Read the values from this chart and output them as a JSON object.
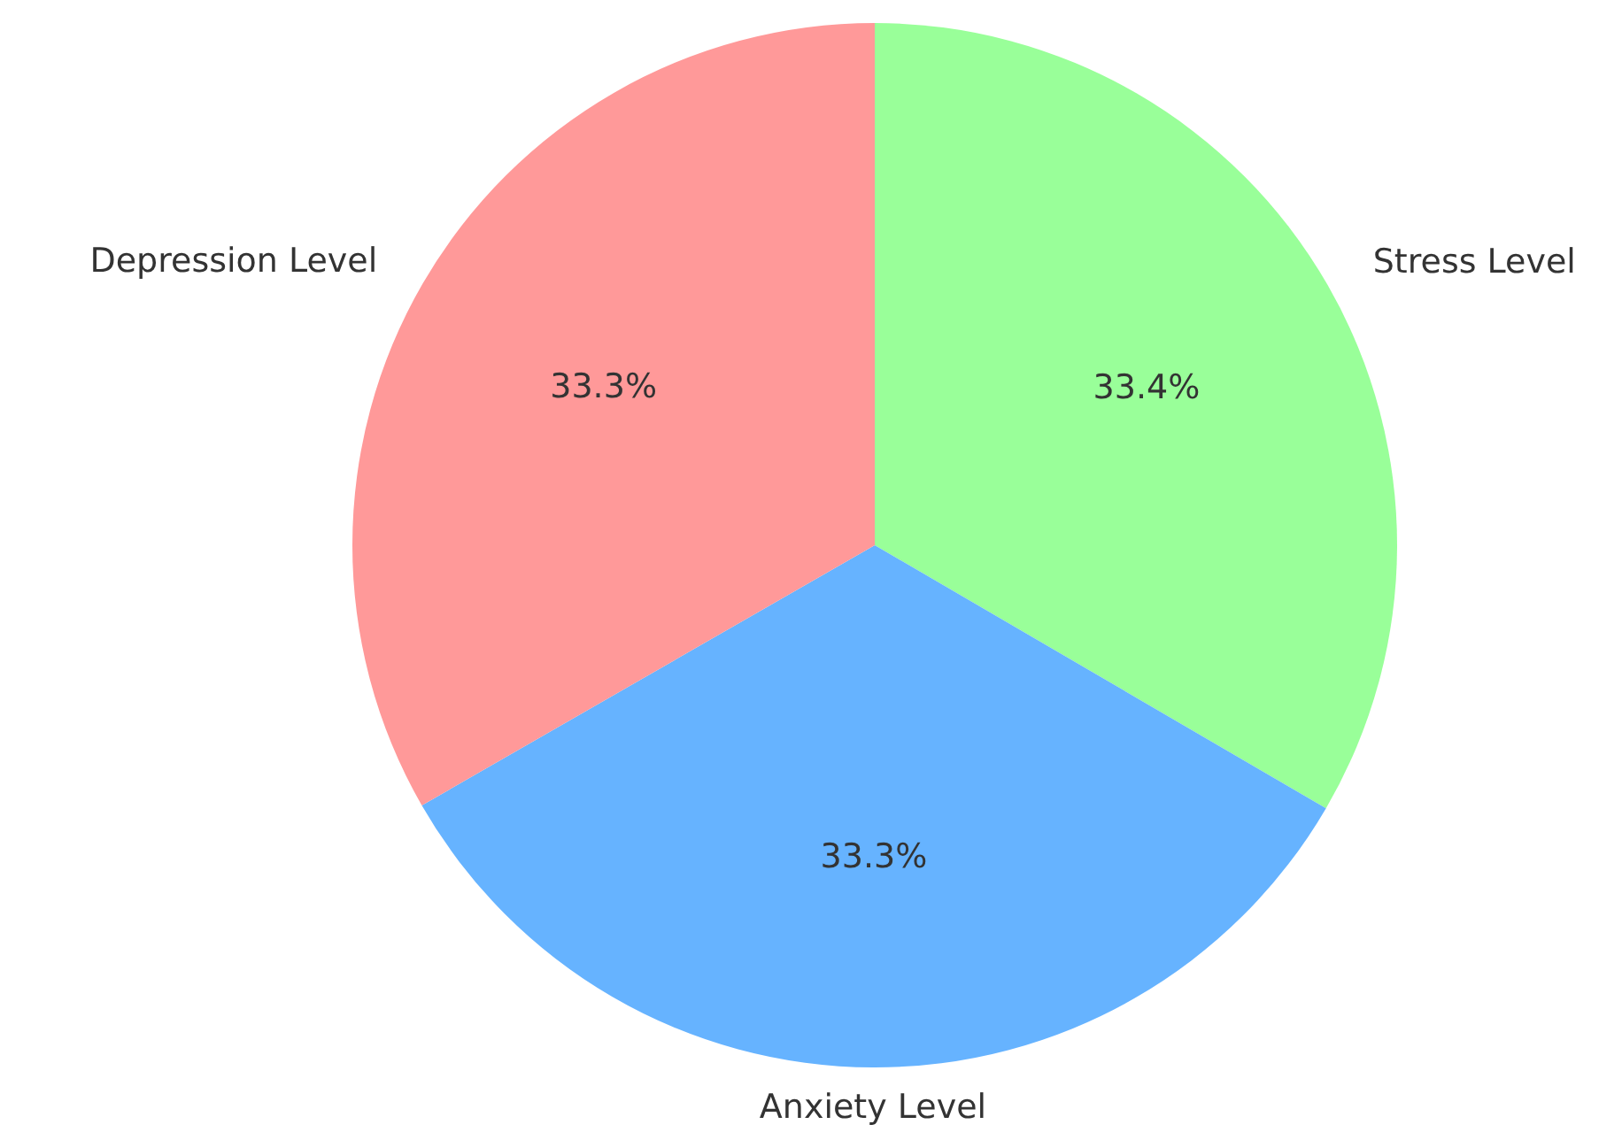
{
  "chart_data": {
    "type": "pie",
    "categories": [
      "Stress Level",
      "Anxiety Level",
      "Depression Level"
    ],
    "values": [
      33.4,
      33.3,
      33.3
    ],
    "colors": [
      "#99ff99",
      "#66b3ff",
      "#ff9999"
    ],
    "value_labels": [
      "33.4%",
      "33.3%",
      "33.3%"
    ],
    "legend": false
  }
}
